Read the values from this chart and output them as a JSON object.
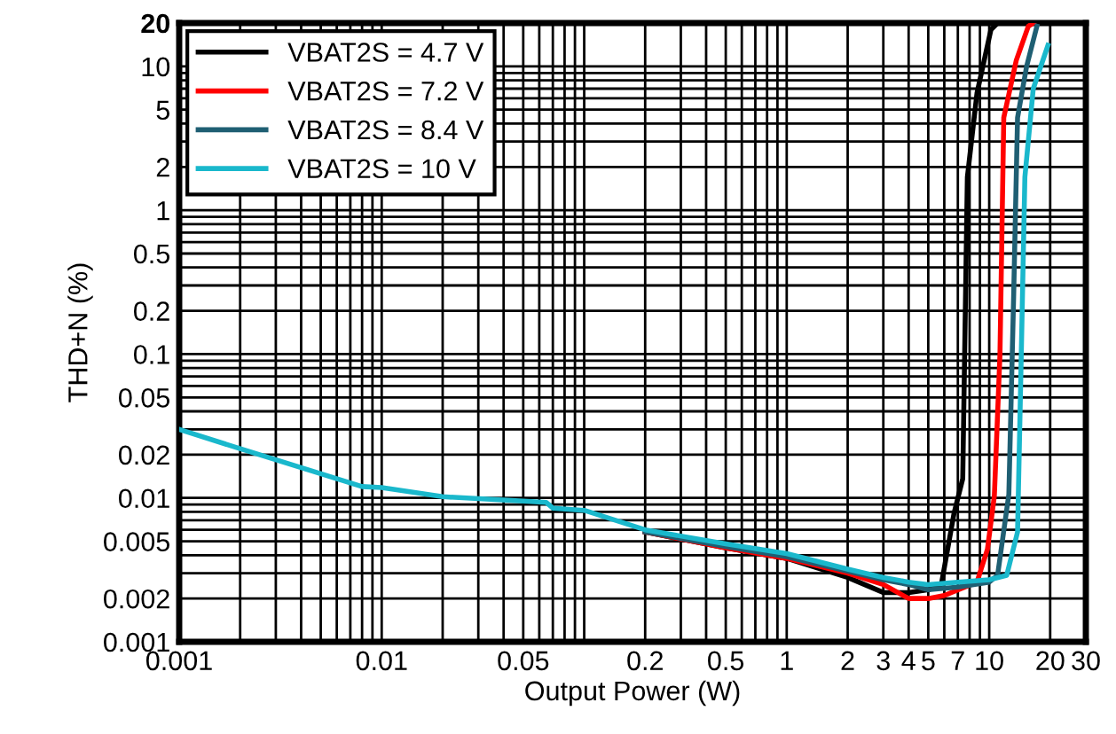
{
  "chart_data": {
    "type": "line",
    "xlabel": "Output Power (W)",
    "ylabel": "THD+N (%)",
    "log": "xy",
    "grid": true,
    "legend": "top left",
    "xlim": [
      0.001,
      30
    ],
    "xticks": [
      0.001,
      0.01,
      0.05,
      0.2,
      0.5,
      1,
      2,
      3,
      4,
      5,
      7,
      10,
      20,
      30
    ],
    "ylim": [
      0.001,
      20
    ],
    "yticks": [
      0.001,
      0.002,
      0.005,
      0.01,
      0.02,
      0.05,
      0.1,
      0.2,
      0.5,
      1,
      2,
      5,
      10,
      20
    ],
    "series": [
      {
        "name": "VBAT2S = 4.7 V",
        "color": "#000000",
        "x": [
          0.2,
          0.5,
          1,
          2,
          3,
          4,
          5,
          5.8,
          6.7,
          7.4,
          7.8,
          8.7,
          10.2,
          11
        ],
        "values": [
          0.0058,
          0.0045,
          0.0038,
          0.0028,
          0.0022,
          0.0022,
          0.0023,
          0.0025,
          0.0078,
          0.0136,
          1.7,
          6.5,
          18,
          20
        ]
      },
      {
        "name": "VBAT2S = 7.2 V",
        "color": "#ff0000",
        "x": [
          0.2,
          0.5,
          1,
          2,
          3,
          4,
          5,
          6,
          8.7,
          9.8,
          10.6,
          11.3,
          11.8,
          13.6,
          15.6,
          16.5
        ],
        "values": [
          0.0058,
          0.0045,
          0.0038,
          0.003,
          0.0025,
          0.002,
          0.002,
          0.0021,
          0.0026,
          0.0044,
          0.0103,
          0.1,
          4.4,
          11,
          19,
          20
        ]
      },
      {
        "name": "VBAT2S = 8.4 V",
        "color": "#1f5f73",
        "x": [
          0.2,
          0.5,
          1,
          2,
          3,
          4,
          5,
          7,
          10,
          11,
          12.5,
          13.2,
          13.8,
          15.3,
          17.2
        ],
        "values": [
          0.0058,
          0.0046,
          0.0039,
          0.0031,
          0.0027,
          0.0025,
          0.0023,
          0.0024,
          0.0026,
          0.0029,
          0.0106,
          0.25,
          4.4,
          10,
          19
        ]
      },
      {
        "name": "VBAT2S = 10 V",
        "color": "#1ab8cc",
        "x": [
          0.001,
          0.002,
          0.008,
          0.01,
          0.02,
          0.05,
          0.065,
          0.07,
          0.1,
          0.2,
          0.5,
          1,
          2,
          3,
          4,
          5,
          7,
          10,
          12.2,
          13.8,
          14.4,
          15,
          16.5,
          19.5
        ],
        "values": [
          0.03,
          0.022,
          0.012,
          0.0118,
          0.0102,
          0.0095,
          0.0093,
          0.0085,
          0.0082,
          0.006,
          0.0048,
          0.0041,
          0.0032,
          0.0028,
          0.0026,
          0.0025,
          0.0026,
          0.0027,
          0.0029,
          0.0058,
          0.1,
          1.7,
          7,
          14
        ]
      }
    ]
  }
}
